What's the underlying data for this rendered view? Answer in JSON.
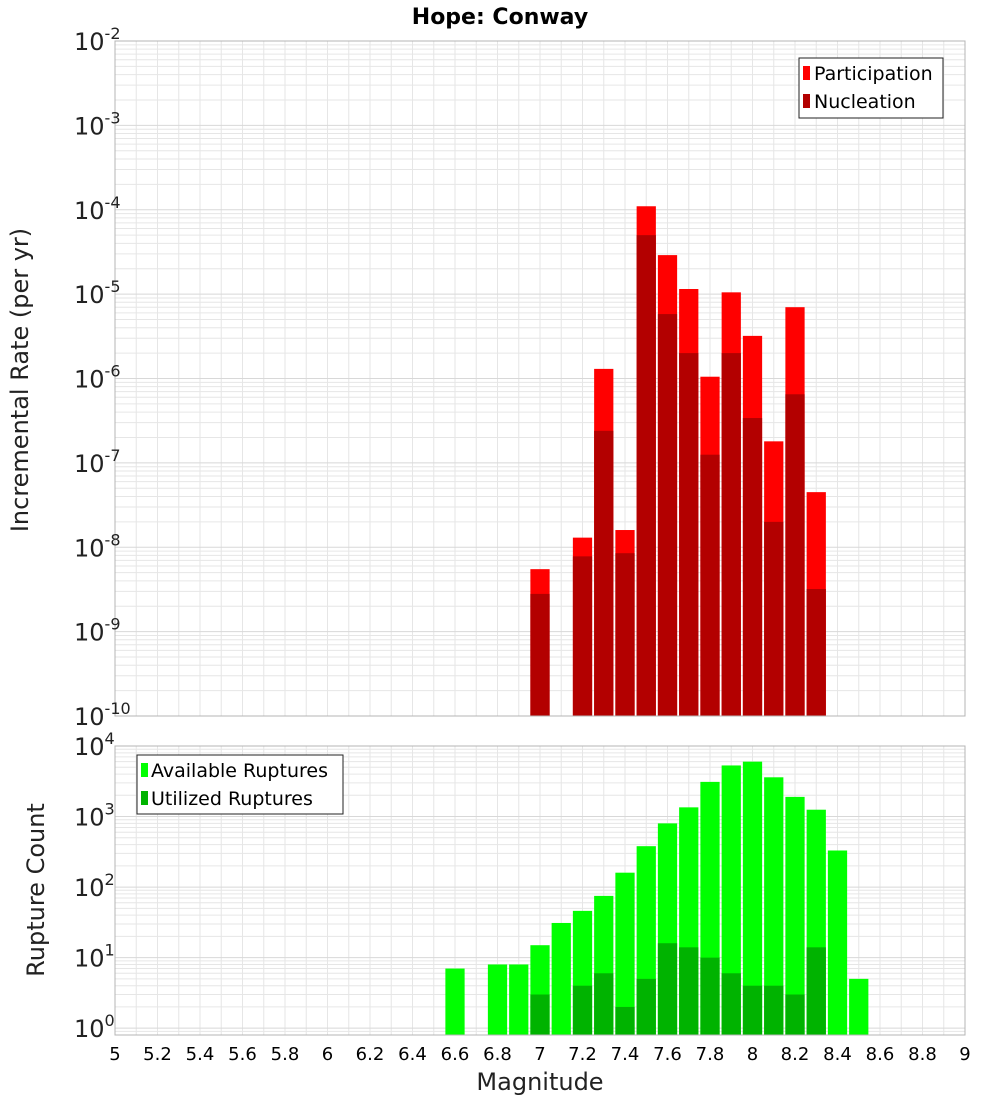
{
  "title": "Hope: Conway",
  "colors": {
    "participation": "#ff0000",
    "nucleation": "#b30000",
    "available": "#00ff00",
    "utilized": "#00b300",
    "grid": "#e6e6e6",
    "axis": "#b4b4b4"
  },
  "chart_data": [
    {
      "type": "bar",
      "title": "Hope: Conway",
      "ylabel": "Incremental Rate (per yr)",
      "yscale": "log",
      "ylim": [
        1e-10,
        0.01
      ],
      "xlim": [
        5,
        9
      ],
      "grid": true,
      "legend_position": "top-right",
      "y_tick_labels": [
        {
          "base": "10",
          "exp": "-10"
        },
        {
          "base": "10",
          "exp": "-9"
        },
        {
          "base": "10",
          "exp": "-8"
        },
        {
          "base": "10",
          "exp": "-7"
        },
        {
          "base": "10",
          "exp": "-6"
        },
        {
          "base": "10",
          "exp": "-5"
        },
        {
          "base": "10",
          "exp": "-4"
        },
        {
          "base": "10",
          "exp": "-3"
        },
        {
          "base": "10",
          "exp": "-2"
        }
      ],
      "series": [
        {
          "name": "Participation",
          "x": [
            7.0,
            7.1,
            7.2,
            7.3,
            7.4,
            7.5,
            7.6,
            7.7,
            7.8,
            7.9,
            8.0,
            8.1,
            8.2,
            8.3
          ],
          "values": [
            5.5e-09,
            0,
            1.3e-08,
            1.3e-06,
            1.6e-08,
            0.00011,
            2.9e-05,
            1.15e-05,
            1.05e-06,
            1.05e-05,
            3.2e-06,
            1.8e-07,
            7e-06,
            4.5e-08
          ]
        },
        {
          "name": "Nucleation",
          "x": [
            7.0,
            7.1,
            7.2,
            7.3,
            7.4,
            7.5,
            7.6,
            7.7,
            7.8,
            7.9,
            8.0,
            8.1,
            8.2,
            8.3
          ],
          "values": [
            2.8e-09,
            0,
            7.8e-09,
            2.4e-07,
            8.5e-09,
            5e-05,
            5.8e-06,
            2e-06,
            1.25e-07,
            2e-06,
            3.4e-07,
            2e-08,
            6.5e-07,
            3.2e-09
          ]
        }
      ]
    },
    {
      "type": "bar",
      "ylabel": "Rupture Count",
      "xlabel": "Magnitude",
      "yscale": "log",
      "ylim": [
        0.8,
        10000
      ],
      "xlim": [
        5,
        9
      ],
      "grid": true,
      "legend_position": "top-left",
      "x_tick_labels": [
        "5",
        "5.2",
        "5.4",
        "5.6",
        "5.8",
        "6",
        "6.2",
        "6.4",
        "6.6",
        "6.8",
        "7",
        "7.2",
        "7.4",
        "7.6",
        "7.8",
        "8",
        "8.2",
        "8.4",
        "8.6",
        "8.8",
        "9"
      ],
      "y_tick_labels": [
        {
          "base": "10",
          "exp": "0"
        },
        {
          "base": "10",
          "exp": "1"
        },
        {
          "base": "10",
          "exp": "2"
        },
        {
          "base": "10",
          "exp": "3"
        },
        {
          "base": "10",
          "exp": "4"
        }
      ],
      "series": [
        {
          "name": "Available Ruptures",
          "x": [
            6.6,
            6.7,
            6.8,
            6.9,
            7.0,
            7.1,
            7.2,
            7.3,
            7.4,
            7.5,
            7.6,
            7.7,
            7.8,
            7.9,
            8.0,
            8.1,
            8.2,
            8.3,
            8.4,
            8.5
          ],
          "values": [
            7,
            0,
            8,
            8,
            15,
            31,
            46,
            75,
            160,
            380,
            800,
            1350,
            3100,
            5300,
            6000,
            3600,
            1900,
            1250,
            330,
            5
          ]
        },
        {
          "name": "Utilized Ruptures",
          "x": [
            6.6,
            6.7,
            6.8,
            6.9,
            7.0,
            7.1,
            7.2,
            7.3,
            7.4,
            7.5,
            7.6,
            7.7,
            7.8,
            7.9,
            8.0,
            8.1,
            8.2,
            8.3,
            8.4,
            8.5
          ],
          "values": [
            0,
            0,
            0,
            0,
            3,
            0,
            4,
            6,
            2,
            5,
            16,
            14,
            10,
            6,
            4,
            4,
            3,
            14,
            0,
            0
          ]
        }
      ]
    }
  ]
}
